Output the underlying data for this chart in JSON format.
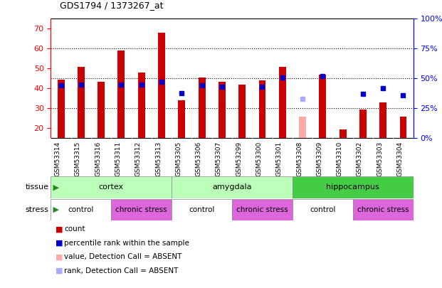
{
  "title": "GDS1794 / 1373267_at",
  "samples": [
    "GSM53314",
    "GSM53315",
    "GSM53316",
    "GSM53311",
    "GSM53312",
    "GSM53313",
    "GSM53305",
    "GSM53306",
    "GSM53307",
    "GSM53299",
    "GSM53300",
    "GSM53301",
    "GSM53308",
    "GSM53309",
    "GSM53310",
    "GSM53302",
    "GSM53303",
    "GSM53304"
  ],
  "count_values": [
    44.5,
    51.0,
    43.5,
    59.0,
    48.0,
    68.0,
    34.0,
    45.5,
    43.5,
    42.0,
    44.0,
    51.0,
    null,
    47.0,
    19.5,
    29.5,
    33.0,
    26.0
  ],
  "percentile_values": [
    44.0,
    45.0,
    null,
    45.0,
    45.0,
    47.0,
    38.0,
    44.0,
    43.0,
    null,
    43.0,
    51.0,
    null,
    52.0,
    null,
    37.0,
    42.0,
    36.0
  ],
  "absent_count": [
    null,
    null,
    null,
    null,
    null,
    null,
    null,
    null,
    null,
    null,
    null,
    null,
    26.0,
    null,
    null,
    null,
    null,
    null
  ],
  "absent_rank": [
    null,
    null,
    null,
    null,
    null,
    null,
    null,
    null,
    null,
    null,
    null,
    null,
    33.0,
    null,
    null,
    null,
    null,
    null
  ],
  "tissue_groups": [
    {
      "label": "cortex",
      "start": 0,
      "end": 6,
      "color": "#bbffbb"
    },
    {
      "label": "amygdala",
      "start": 6,
      "end": 12,
      "color": "#bbffbb"
    },
    {
      "label": "hippocampus",
      "start": 12,
      "end": 18,
      "color": "#44cc44"
    }
  ],
  "stress_groups": [
    {
      "label": "control",
      "start": 0,
      "end": 3,
      "color": "#ee88ee"
    },
    {
      "label": "chronic stress",
      "start": 3,
      "end": 6,
      "color": "#ee88ee"
    },
    {
      "label": "control",
      "start": 6,
      "end": 9,
      "color": "#ee88ee"
    },
    {
      "label": "chronic stress",
      "start": 9,
      "end": 12,
      "color": "#ee88ee"
    },
    {
      "label": "control",
      "start": 12,
      "end": 15,
      "color": "#ee88ee"
    },
    {
      "label": "chronic stress",
      "start": 15,
      "end": 18,
      "color": "#ee88ee"
    }
  ],
  "stress_control_color": "#ee88ee",
  "stress_chronic_color": "#ee88ee",
  "ylim_left": [
    15,
    75
  ],
  "ylim_right": [
    0,
    100
  ],
  "bar_color": "#cc0000",
  "absent_bar_color": "#ffaaaa",
  "dot_color": "#0000cc",
  "absent_dot_color": "#aaaaff",
  "bar_width": 0.35,
  "dot_size": 5,
  "plot_bg_color": "#ffffff",
  "xticklabel_bg": "#cccccc",
  "tissue_light_color": "#bbffbb",
  "tissue_dark_color": "#44cc44",
  "stress_control_bg": "#ee88ee",
  "stress_chronic_bg": "#ee88ee",
  "arrow_color": "#228822"
}
